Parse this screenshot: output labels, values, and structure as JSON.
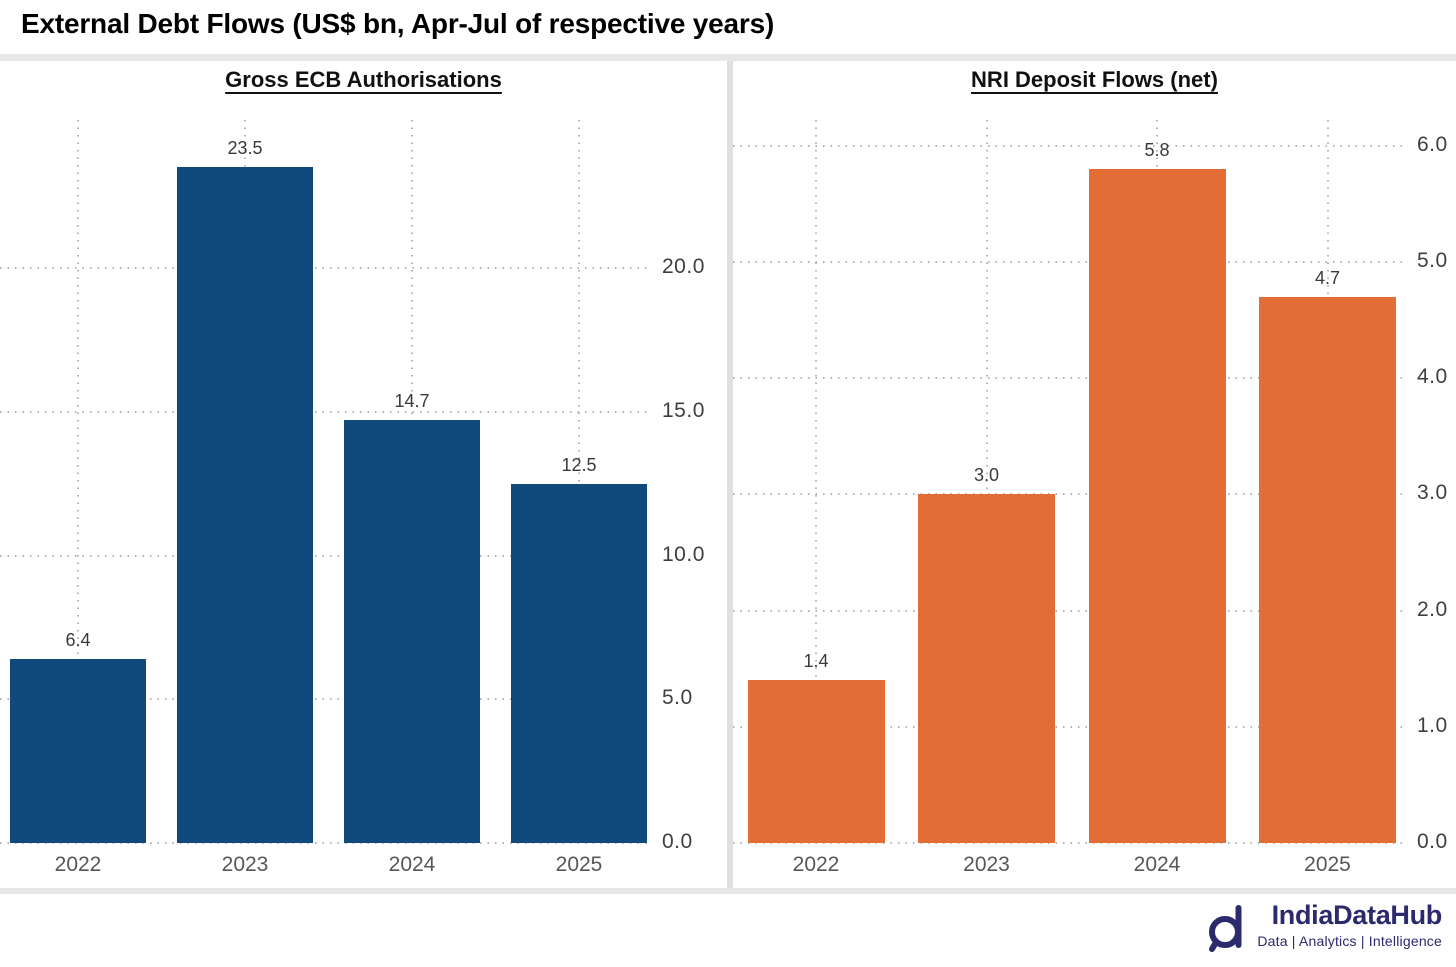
{
  "page": {
    "title": "External Debt Flows (US$ bn, Apr-Jul of respective years)"
  },
  "footer": {
    "brand": "IndiaDataHub",
    "tagline": "Data | Analytics | Intelligence",
    "logo_icon": "magnifier-d-icon",
    "brand_color": "#2a2a6c"
  },
  "colors": {
    "ecb_bar": "#104a7d",
    "nri_bar": "#e26e35",
    "gridline": "#b3b3b3",
    "axis_text": "#3f3f3f",
    "year_text": "#575757",
    "divider": "#e0e0e0"
  },
  "chart_data": [
    {
      "type": "bar",
      "title": "Gross ECB Authorisations",
      "categories": [
        "2022",
        "2023",
        "2024",
        "2025"
      ],
      "values": [
        6.4,
        23.5,
        14.7,
        12.5
      ],
      "value_labels": [
        "6.4",
        "23.5",
        "14.7",
        "12.5"
      ],
      "bar_color": "#104a7d",
      "ytick_values": [
        0,
        5,
        10,
        15,
        20
      ],
      "ytick_labels": [
        "0.0",
        "5.0",
        "10.0",
        "15.0",
        "20.0"
      ],
      "ylim": [
        0,
        25.15
      ],
      "grid": true,
      "axis_side": "right",
      "xlabel": "",
      "ylabel": ""
    },
    {
      "type": "bar",
      "title": "NRI Deposit Flows (net)",
      "categories": [
        "2022",
        "2023",
        "2024",
        "2025"
      ],
      "values": [
        1.4,
        3.0,
        5.8,
        4.7
      ],
      "value_labels": [
        "1.4",
        "3.0",
        "5.8",
        "4.7"
      ],
      "bar_color": "#e26e35",
      "ytick_values": [
        0,
        1,
        2,
        3,
        4,
        5,
        6
      ],
      "ytick_labels": [
        "0.0",
        "1.0",
        "2.0",
        "3.0",
        "4.0",
        "5.0",
        "6.0"
      ],
      "ylim": [
        0,
        6.22
      ],
      "grid": true,
      "axis_side": "right",
      "xlabel": "",
      "ylabel": ""
    }
  ]
}
